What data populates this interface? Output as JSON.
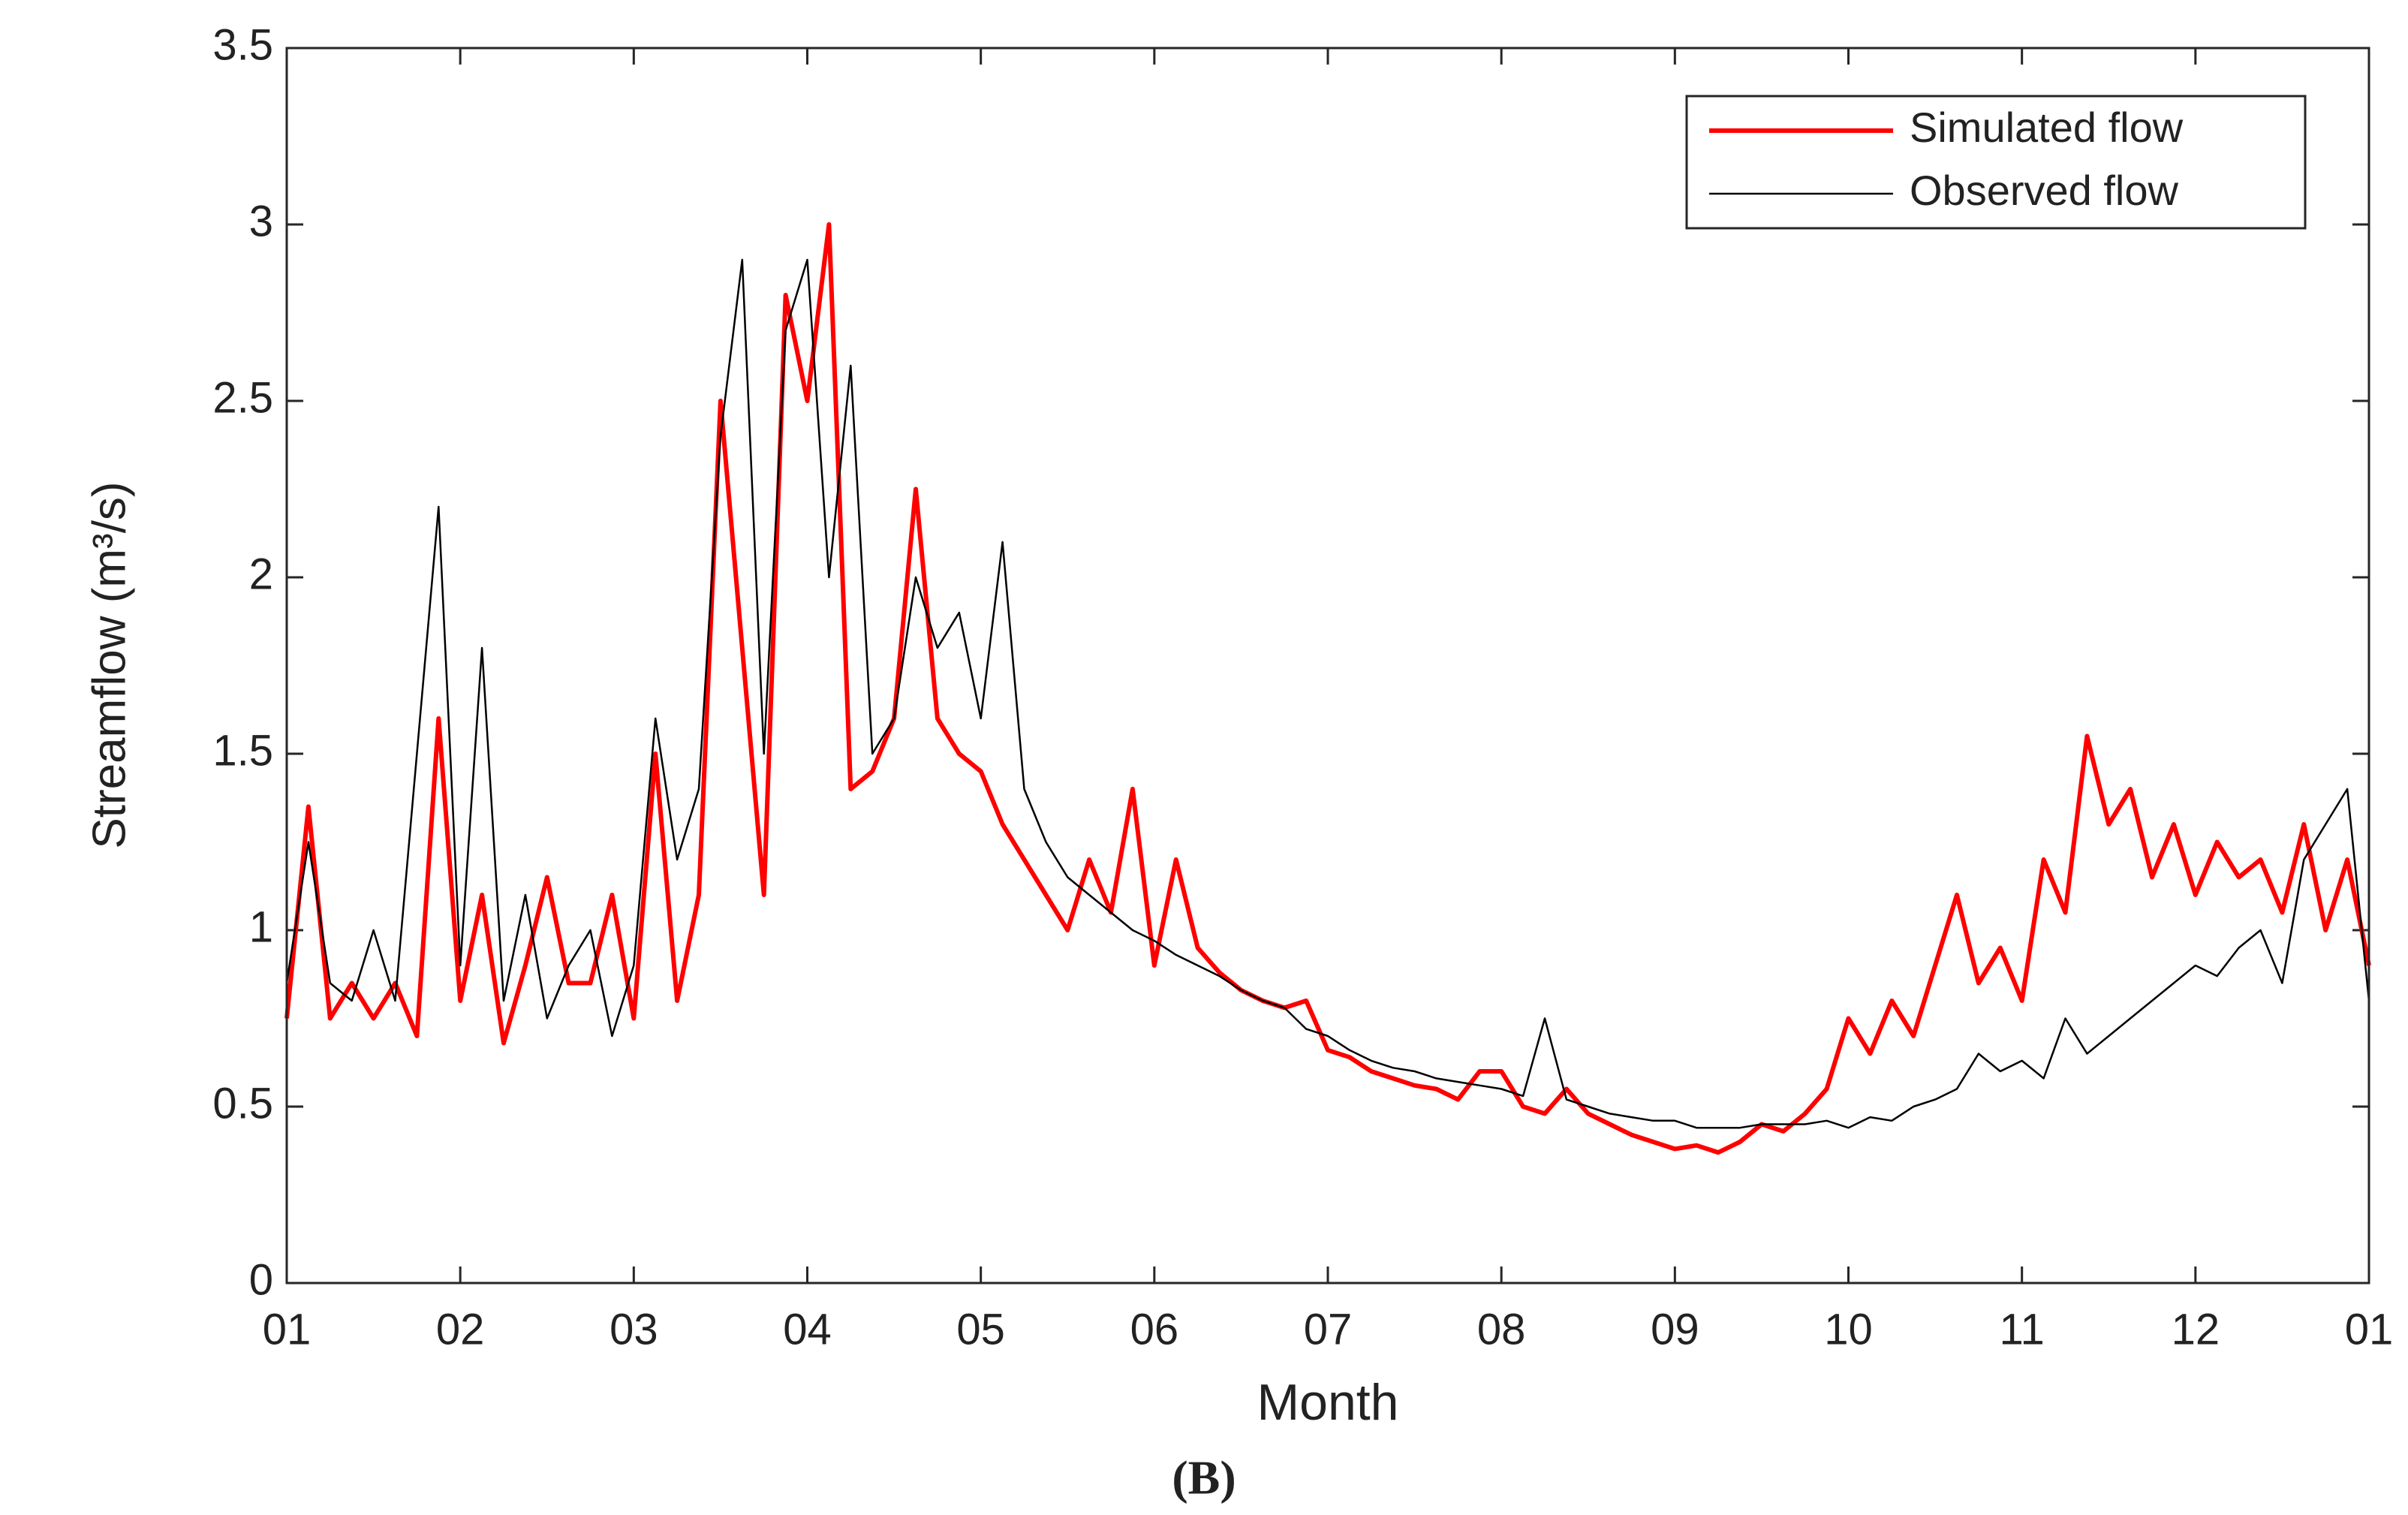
{
  "chart_data": {
    "type": "line",
    "xlabel": "Month",
    "ylabel": "Streamflow (m³/s)",
    "caption": "(B)",
    "xlim": [
      1,
      13
    ],
    "xticks": [
      {
        "value": 1,
        "label": "01"
      },
      {
        "value": 2,
        "label": "02"
      },
      {
        "value": 3,
        "label": "03"
      },
      {
        "value": 4,
        "label": "04"
      },
      {
        "value": 5,
        "label": "05"
      },
      {
        "value": 6,
        "label": "06"
      },
      {
        "value": 7,
        "label": "07"
      },
      {
        "value": 8,
        "label": "08"
      },
      {
        "value": 9,
        "label": "09"
      },
      {
        "value": 10,
        "label": "10"
      },
      {
        "value": 11,
        "label": "11"
      },
      {
        "value": 12,
        "label": "12"
      },
      {
        "value": 13,
        "label": "01"
      }
    ],
    "ylim": [
      0,
      3.5
    ],
    "yticks": [
      0,
      0.5,
      1,
      1.5,
      2,
      2.5,
      3,
      3.5
    ],
    "legend": "upper right",
    "x": [
      1,
      1.125,
      1.25,
      1.375,
      1.5,
      1.625,
      1.75,
      1.875,
      2,
      2.125,
      2.25,
      2.375,
      2.5,
      2.625,
      2.75,
      2.875,
      3,
      3.125,
      3.25,
      3.375,
      3.5,
      3.625,
      3.75,
      3.875,
      4,
      4.125,
      4.25,
      4.375,
      4.5,
      4.625,
      4.75,
      4.875,
      5,
      5.125,
      5.25,
      5.375,
      5.5,
      5.625,
      5.75,
      5.875,
      6,
      6.125,
      6.25,
      6.375,
      6.5,
      6.625,
      6.75,
      6.875,
      7,
      7.125,
      7.25,
      7.375,
      7.5,
      7.625,
      7.75,
      7.875,
      8,
      8.125,
      8.25,
      8.375,
      8.5,
      8.625,
      8.75,
      8.875,
      9,
      9.125,
      9.25,
      9.375,
      9.5,
      9.625,
      9.75,
      9.875,
      10,
      10.125,
      10.25,
      10.375,
      10.5,
      10.625,
      10.75,
      10.875,
      11,
      11.125,
      11.25,
      11.375,
      11.5,
      11.625,
      11.75,
      11.875,
      12,
      12.125,
      12.25,
      12.375,
      12.5,
      12.625,
      12.75,
      12.875,
      13
    ],
    "series": [
      {
        "name": "Simulated flow",
        "color": "#ff0000",
        "width": 6,
        "values": [
          0.75,
          1.35,
          0.75,
          0.85,
          0.75,
          0.85,
          0.7,
          1.6,
          0.8,
          1.1,
          0.68,
          0.9,
          1.15,
          0.85,
          0.85,
          1.1,
          0.75,
          1.5,
          0.8,
          1.1,
          2.5,
          1.8,
          1.1,
          2.8,
          2.5,
          3.0,
          1.4,
          1.45,
          1.6,
          2.25,
          1.6,
          1.5,
          1.45,
          1.3,
          1.2,
          1.1,
          1.0,
          1.2,
          1.05,
          1.4,
          0.9,
          1.2,
          0.95,
          0.88,
          0.83,
          0.8,
          0.78,
          0.8,
          0.66,
          0.64,
          0.6,
          0.58,
          0.56,
          0.55,
          0.52,
          0.6,
          0.6,
          0.5,
          0.48,
          0.55,
          0.48,
          0.45,
          0.42,
          0.4,
          0.38,
          0.39,
          0.37,
          0.4,
          0.45,
          0.43,
          0.48,
          0.55,
          0.75,
          0.65,
          0.8,
          0.7,
          0.9,
          1.1,
          0.85,
          0.95,
          0.8,
          1.2,
          1.05,
          1.55,
          1.3,
          1.4,
          1.15,
          1.3,
          1.1,
          1.25,
          1.15,
          1.2,
          1.05,
          1.3,
          1.0,
          1.2,
          0.9
        ]
      },
      {
        "name": "Observed flow",
        "color": "#000000",
        "width": 2.5,
        "values": [
          0.85,
          1.25,
          0.85,
          0.8,
          1.0,
          0.8,
          1.5,
          2.2,
          0.9,
          1.8,
          0.8,
          1.1,
          0.75,
          0.9,
          1.0,
          0.7,
          0.9,
          1.6,
          1.2,
          1.4,
          2.4,
          2.9,
          1.5,
          2.7,
          2.9,
          2.0,
          2.6,
          1.5,
          1.6,
          2.0,
          1.8,
          1.9,
          1.6,
          2.1,
          1.4,
          1.25,
          1.15,
          1.1,
          1.05,
          1.0,
          0.97,
          0.93,
          0.9,
          0.87,
          0.83,
          0.8,
          0.78,
          0.72,
          0.7,
          0.66,
          0.63,
          0.61,
          0.6,
          0.58,
          0.57,
          0.56,
          0.55,
          0.53,
          0.75,
          0.52,
          0.5,
          0.48,
          0.47,
          0.46,
          0.46,
          0.44,
          0.44,
          0.44,
          0.45,
          0.45,
          0.45,
          0.46,
          0.44,
          0.47,
          0.46,
          0.5,
          0.52,
          0.55,
          0.65,
          0.6,
          0.63,
          0.58,
          0.75,
          0.65,
          0.7,
          0.75,
          0.8,
          0.85,
          0.9,
          0.87,
          0.95,
          1.0,
          0.85,
          1.2,
          1.3,
          1.4,
          0.8
        ]
      }
    ]
  }
}
